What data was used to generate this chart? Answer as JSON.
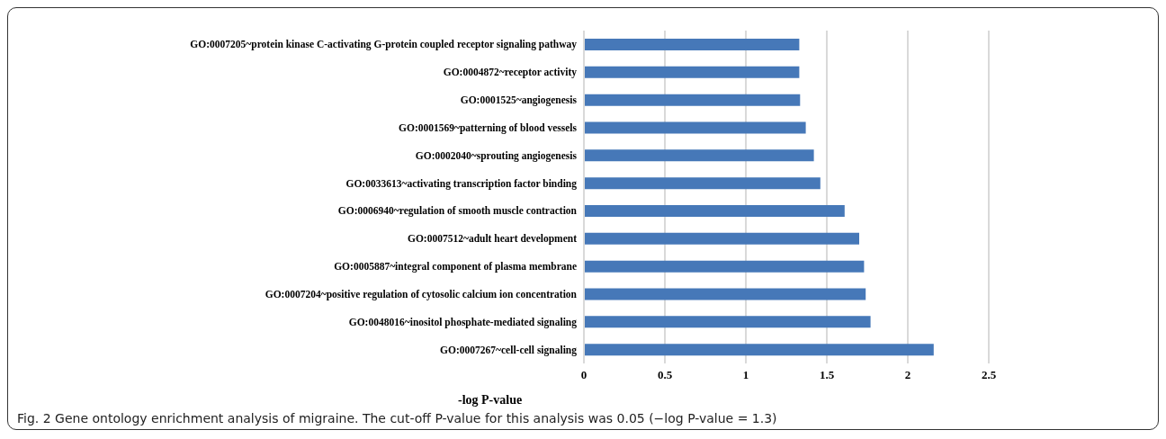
{
  "chart_data": {
    "type": "bar",
    "orientation": "horizontal",
    "xlabel": "-log P-value",
    "categories": [
      "GO:0007205~protein kinase C-activating G-protein coupled receptor signaling pathway",
      "GO:0004872~receptor activity",
      "GO:0001525~angiogenesis",
      "GO:0001569~patterning of blood vessels",
      "GO:0002040~sprouting angiogenesis",
      "GO:0033613~activating transcription factor binding",
      "GO:0006940~regulation of smooth muscle contraction",
      "GO:0007512~adult heart development",
      "GO:0005887~integral component of plasma membrane",
      "GO:0007204~positive regulation of cytosolic calcium ion concentration",
      "GO:0048016~inositol phosphate-mediated signaling",
      "GO:0007267~cell-cell signaling"
    ],
    "values": [
      1.33,
      1.33,
      1.335,
      1.37,
      1.42,
      1.46,
      1.61,
      1.7,
      1.73,
      1.74,
      1.77,
      2.16
    ],
    "color": "#4678b8",
    "xlim": [
      0,
      2.5
    ],
    "xticks": [
      0,
      0.5,
      1,
      1.5,
      2,
      2.5
    ],
    "grid": "x",
    "annotations": [
      "Fig. 2 Gene ontology enrichment analysis of migraine. The cut-off P-value for this analysis was 0.05 (−log P-value = 1.3)"
    ]
  }
}
